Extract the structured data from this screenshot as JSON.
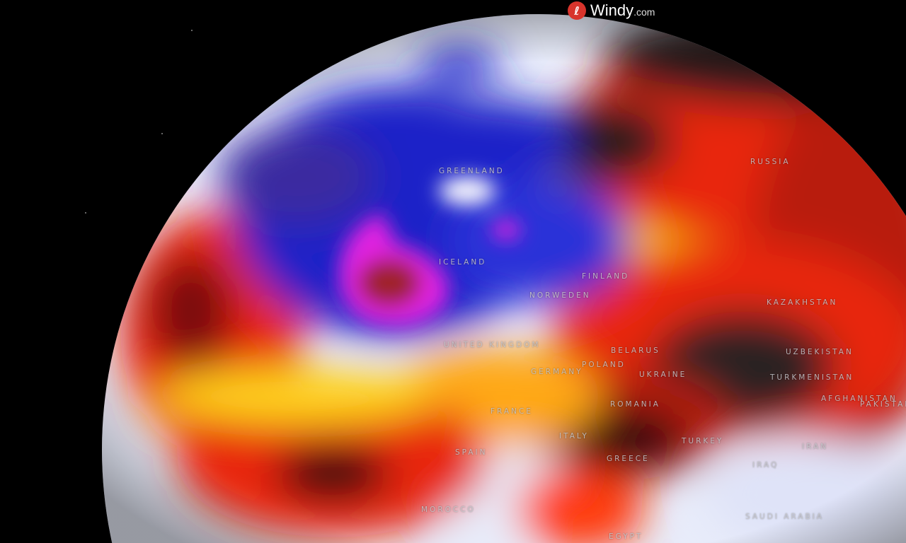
{
  "brand": {
    "name": "Windy",
    "suffix": ".com",
    "icon": "windy-logo-icon",
    "color": "#d8342c"
  },
  "map": {
    "type": "globe",
    "layer_colors": {
      "cold": "#1a20c8",
      "cool": "#e8ecfa",
      "warm": "#ffd21a",
      "hot": "#e8250c",
      "very_hot": "#3a2a2a",
      "extreme_cold": "#e020e0"
    },
    "labels": [
      {
        "id": "greenland",
        "text": "GREENLAND"
      },
      {
        "id": "russia",
        "text": "RUSSIA"
      },
      {
        "id": "iceland",
        "text": "ICELAND"
      },
      {
        "id": "finland",
        "text": "FINLAND"
      },
      {
        "id": "norway-sweden",
        "text": "NORWEDEN"
      },
      {
        "id": "united-kingdom",
        "text": "UNITED KINGDOM"
      },
      {
        "id": "belarus",
        "text": "BELARUS"
      },
      {
        "id": "poland",
        "text": "POLAND"
      },
      {
        "id": "germany",
        "text": "GERMANY"
      },
      {
        "id": "ukraine",
        "text": "UKRAINE"
      },
      {
        "id": "kazakhstan",
        "text": "KAZAKHSTAN"
      },
      {
        "id": "uzbekistan",
        "text": "UZBEKISTAN"
      },
      {
        "id": "turkmenistan",
        "text": "TURKMENISTAN"
      },
      {
        "id": "afghanistan",
        "text": "AFGHANISTAN"
      },
      {
        "id": "pakistan",
        "text": "PAKISTAN"
      },
      {
        "id": "france",
        "text": "FRANCE"
      },
      {
        "id": "romania",
        "text": "ROMANIA"
      },
      {
        "id": "italy",
        "text": "ITALY"
      },
      {
        "id": "spain",
        "text": "SPAIN"
      },
      {
        "id": "greece",
        "text": "GREECE"
      },
      {
        "id": "turkey",
        "text": "TURKEY"
      },
      {
        "id": "iran",
        "text": "IRAN"
      },
      {
        "id": "iraq",
        "text": "IRAQ"
      },
      {
        "id": "morocco",
        "text": "MOROCCO"
      },
      {
        "id": "saudi-arabia",
        "text": "SAUDI ARABIA"
      },
      {
        "id": "egypt",
        "text": "EGYPT"
      }
    ]
  }
}
